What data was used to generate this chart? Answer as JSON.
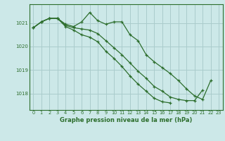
{
  "title": "Graphe pression niveau de la mer (hPa)",
  "bg_color": "#cce8e8",
  "grid_color": "#aacccc",
  "line_color": "#2d6e2d",
  "xlim": [
    -0.5,
    23.5
  ],
  "ylim": [
    1017.3,
    1021.8
  ],
  "yticks": [
    1018,
    1019,
    1020,
    1021
  ],
  "xticks": [
    0,
    1,
    2,
    3,
    4,
    5,
    6,
    7,
    8,
    9,
    10,
    11,
    12,
    13,
    14,
    15,
    16,
    17,
    18,
    19,
    20,
    21,
    22,
    23
  ],
  "series": [
    {
      "x": [
        0,
        1,
        2,
        3,
        4,
        5,
        6,
        7,
        8,
        9,
        10,
        11,
        12,
        13,
        14,
        15,
        16,
        17,
        18,
        19,
        20,
        21,
        22
      ],
      "y": [
        1020.8,
        1021.05,
        1021.2,
        1021.2,
        1020.95,
        1020.85,
        1021.05,
        1021.45,
        1021.1,
        1020.95,
        1021.05,
        1021.05,
        1020.5,
        1020.25,
        1019.65,
        1019.35,
        1019.1,
        1018.85,
        1018.55,
        1018.2,
        1017.9,
        1017.75,
        1018.55
      ]
    },
    {
      "x": [
        0,
        1,
        2,
        3,
        4,
        5,
        6,
        7,
        8,
        9,
        10,
        11,
        12,
        13,
        14,
        15,
        16,
        17,
        18,
        19,
        20,
        21
      ],
      "y": [
        1020.8,
        1021.05,
        1021.2,
        1021.2,
        1020.9,
        1020.8,
        1020.75,
        1020.7,
        1020.55,
        1020.25,
        1019.95,
        1019.65,
        1019.3,
        1018.95,
        1018.65,
        1018.3,
        1018.1,
        1017.85,
        1017.75,
        1017.7,
        1017.7,
        1018.15
      ]
    },
    {
      "x": [
        0,
        1,
        2,
        3,
        4,
        5,
        6,
        7,
        8,
        9,
        10,
        11,
        12,
        13,
        14,
        15,
        16,
        17
      ],
      "y": [
        1020.8,
        1021.05,
        1021.2,
        1021.2,
        1020.85,
        1020.7,
        1020.5,
        1020.4,
        1020.2,
        1019.8,
        1019.5,
        1019.15,
        1018.75,
        1018.4,
        1018.1,
        1017.8,
        1017.65,
        1017.6
      ]
    }
  ]
}
